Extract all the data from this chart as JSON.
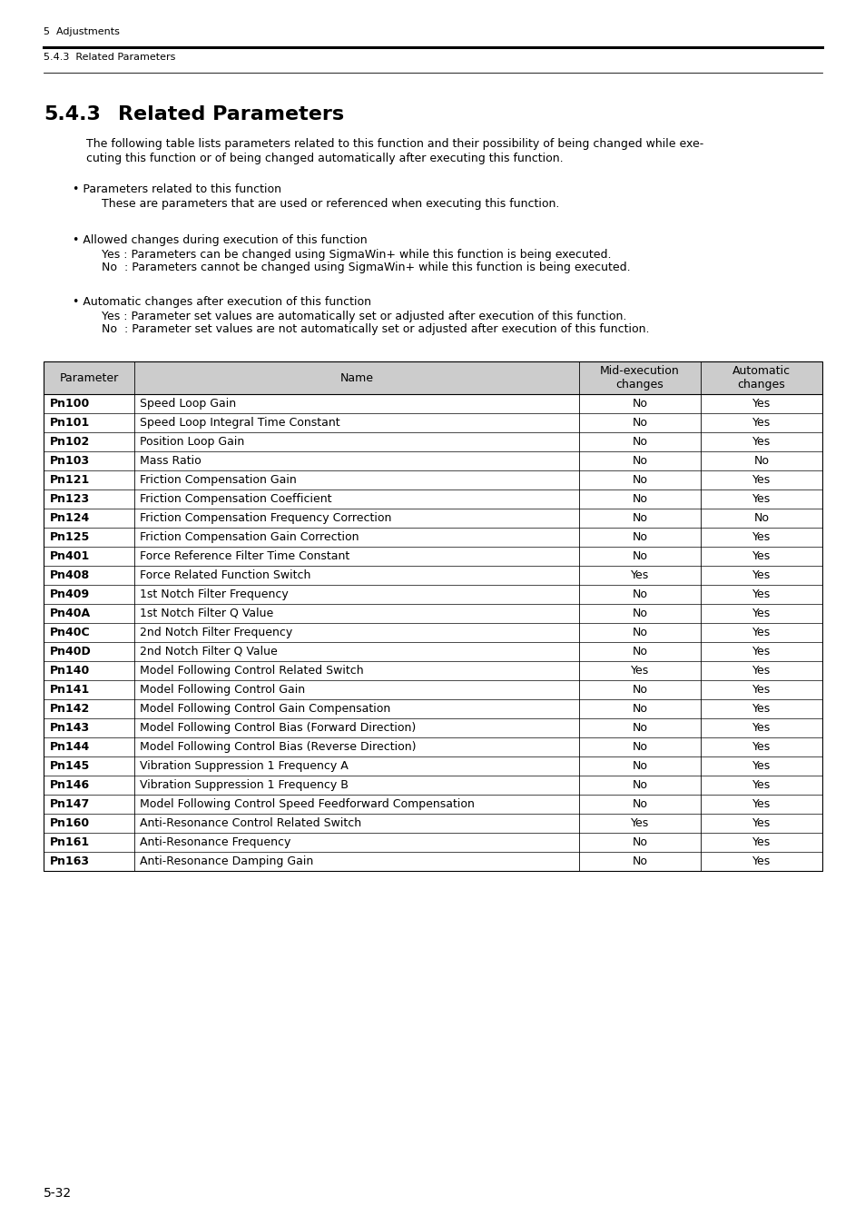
{
  "page_header_left": "5  Adjustments",
  "section_subheader": "5.4.3  Related Parameters",
  "section_number": "5.4.3",
  "section_title": "Related Parameters",
  "intro_line1": "The following table lists parameters related to this function and their possibility of being changed while exe-",
  "intro_line2": "cuting this function or of being changed automatically after executing this function.",
  "bullet1_title": "• Parameters related to this function",
  "bullet1_body": "These are parameters that are used or referenced when executing this function.",
  "bullet2_title": "• Allowed changes during execution of this function",
  "bullet2_yes": "Yes : Parameters can be changed using SigmaWin+ while this function is being executed.",
  "bullet2_no": "No  : Parameters cannot be changed using SigmaWin+ while this function is being executed.",
  "bullet3_title": "• Automatic changes after execution of this function",
  "bullet3_yes": "Yes : Parameter set values are automatically set or adjusted after execution of this function.",
  "bullet3_no": "No  : Parameter set values are not automatically set or adjusted after execution of this function.",
  "col_headers": [
    "Parameter",
    "Name",
    "Mid-execution\nchanges",
    "Automatic\nchanges"
  ],
  "rows": [
    [
      "Pn100",
      "Speed Loop Gain",
      "No",
      "Yes"
    ],
    [
      "Pn101",
      "Speed Loop Integral Time Constant",
      "No",
      "Yes"
    ],
    [
      "Pn102",
      "Position Loop Gain",
      "No",
      "Yes"
    ],
    [
      "Pn103",
      "Mass Ratio",
      "No",
      "No"
    ],
    [
      "Pn121",
      "Friction Compensation Gain",
      "No",
      "Yes"
    ],
    [
      "Pn123",
      "Friction Compensation Coefficient",
      "No",
      "Yes"
    ],
    [
      "Pn124",
      "Friction Compensation Frequency Correction",
      "No",
      "No"
    ],
    [
      "Pn125",
      "Friction Compensation Gain Correction",
      "No",
      "Yes"
    ],
    [
      "Pn401",
      "Force Reference Filter Time Constant",
      "No",
      "Yes"
    ],
    [
      "Pn408",
      "Force Related Function Switch",
      "Yes",
      "Yes"
    ],
    [
      "Pn409",
      "1st Notch Filter Frequency",
      "No",
      "Yes"
    ],
    [
      "Pn40A",
      "1st Notch Filter Q Value",
      "No",
      "Yes"
    ],
    [
      "Pn40C",
      "2nd Notch Filter Frequency",
      "No",
      "Yes"
    ],
    [
      "Pn40D",
      "2nd Notch Filter Q Value",
      "No",
      "Yes"
    ],
    [
      "Pn140",
      "Model Following Control Related Switch",
      "Yes",
      "Yes"
    ],
    [
      "Pn141",
      "Model Following Control Gain",
      "No",
      "Yes"
    ],
    [
      "Pn142",
      "Model Following Control Gain Compensation",
      "No",
      "Yes"
    ],
    [
      "Pn143",
      "Model Following Control Bias (Forward Direction)",
      "No",
      "Yes"
    ],
    [
      "Pn144",
      "Model Following Control Bias (Reverse Direction)",
      "No",
      "Yes"
    ],
    [
      "Pn145",
      "Vibration Suppression 1 Frequency A",
      "No",
      "Yes"
    ],
    [
      "Pn146",
      "Vibration Suppression 1 Frequency B",
      "No",
      "Yes"
    ],
    [
      "Pn147",
      "Model Following Control Speed Feedforward Compensation",
      "No",
      "Yes"
    ],
    [
      "Pn160",
      "Anti-Resonance Control Related Switch",
      "Yes",
      "Yes"
    ],
    [
      "Pn161",
      "Anti-Resonance Frequency",
      "No",
      "Yes"
    ],
    [
      "Pn163",
      "Anti-Resonance Damping Gain",
      "No",
      "Yes"
    ]
  ],
  "footer_text": "5-32",
  "header_bg": "#cccccc",
  "border_color": "#000000"
}
